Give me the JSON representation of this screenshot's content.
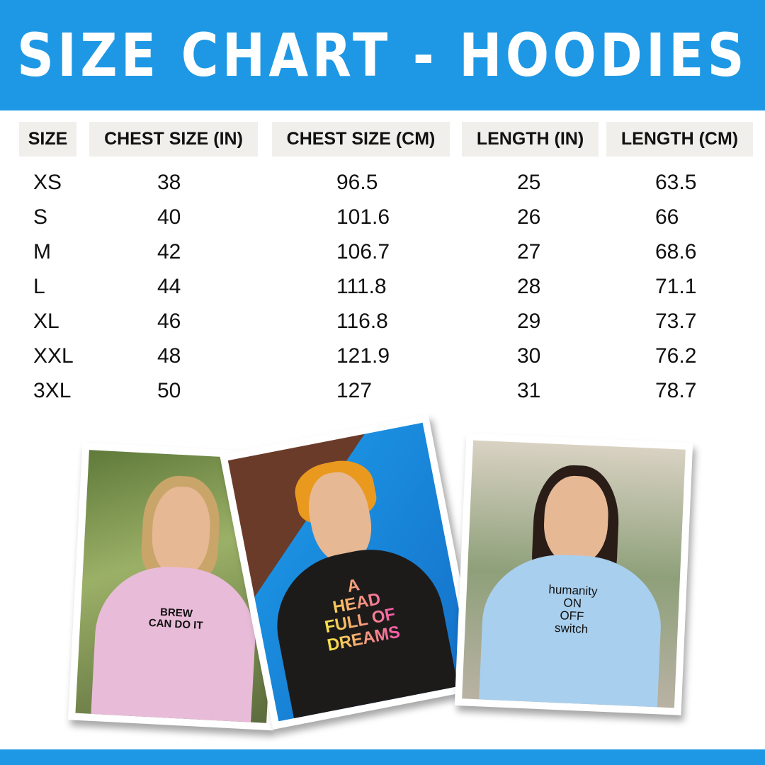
{
  "title": "SIZE CHART - HOODIES",
  "colors": {
    "brand_blue": "#1e98e4",
    "header_cell_bg": "#f0efeb"
  },
  "table": {
    "headers": [
      "SIZE",
      "CHEST SIZE (IN)",
      "CHEST SIZE (CM)",
      "LENGTH (IN)",
      "LENGTH (CM)"
    ],
    "rows": [
      [
        "XS",
        "38",
        "96.5",
        "25",
        "63.5"
      ],
      [
        "S",
        "40",
        "101.6",
        "26",
        "66"
      ],
      [
        "M",
        "42",
        "106.7",
        "27",
        "68.6"
      ],
      [
        "L",
        "44",
        "111.8",
        "28",
        "71.1"
      ],
      [
        "XL",
        "46",
        "116.8",
        "29",
        "73.7"
      ],
      [
        "XXL",
        "48",
        "121.9",
        "30",
        "76.2"
      ],
      [
        "3XL",
        "50",
        "127",
        "31",
        "78.7"
      ]
    ]
  },
  "photos": [
    {
      "hoodie_color": "pink",
      "print": "BREW\nCAN DO IT"
    },
    {
      "hoodie_color": "black",
      "print": "A\nHEAD\nFULL OF\nDREAMS"
    },
    {
      "hoodie_color": "light-blue",
      "print": "humanity\nON\nOFF\nswitch"
    }
  ]
}
